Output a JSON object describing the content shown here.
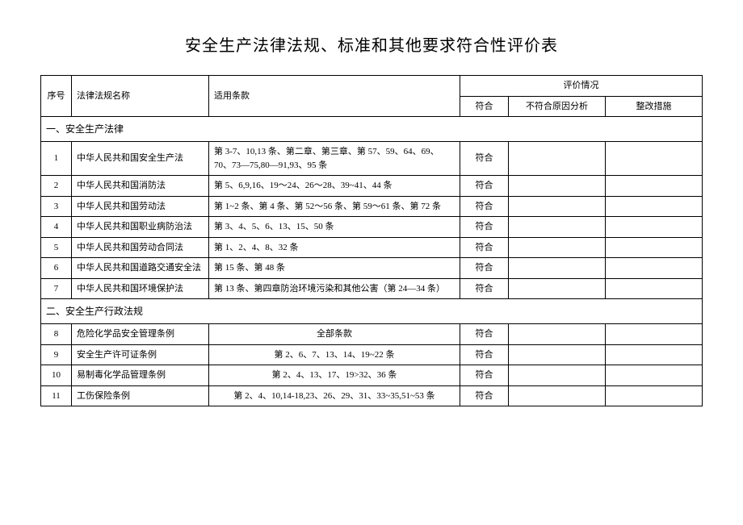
{
  "title": "安全生产法律法规、标准和其他要求符合性评价表",
  "headers": {
    "seq": "序号",
    "name": "法律法规名称",
    "clause": "适用条款",
    "eval_group": "评价情况",
    "fit": "符合",
    "reason": "不符合原因分析",
    "fix": "整改措施"
  },
  "section1": "一、安全生产法律",
  "section2": "二、安全生产行政法规",
  "rows1": {
    "r1": {
      "seq": "1",
      "name": "中华人民共和国安全生产法",
      "clause": "第 3-7、10,13 条、第二章、第三章、第 57、59、64、69、70、73—75,80—91,93、95 条",
      "fit": "符合"
    },
    "r2": {
      "seq": "2",
      "name": "中华人民共和国消防法",
      "clause": "第 5、6,9,16、19～24、26～28、39~41、44 条",
      "fit": "符合"
    },
    "r3": {
      "seq": "3",
      "name": "中华人民共和国劳动法",
      "clause": "第 1~2 条、第 4 条、第 52～56 条、第 59～61 条、第 72 条",
      "fit": "符合"
    },
    "r4": {
      "seq": "4",
      "name": "中华人民共和国职业病防治法",
      "clause": "第 3、4、5、6、13、15、50 条",
      "fit": "符合"
    },
    "r5": {
      "seq": "5",
      "name": "中华人民共和国劳动合同法",
      "clause": "第 1、2、4、8、32 条",
      "fit": "符合"
    },
    "r6": {
      "seq": "6",
      "name": "中华人民共和国道路交通安全法",
      "clause": "第 15 条、第 48 条",
      "fit": "符合"
    },
    "r7": {
      "seq": "7",
      "name": "中华人民共和国环境保护法",
      "clause": "第 13 条、第四章防治环境污染和其他公害（第 24—34 条）",
      "fit": "符合"
    }
  },
  "rows2": {
    "r8": {
      "seq": "8",
      "name": "危险化学品安全管理条例",
      "clause": "全部条款",
      "fit": "符合"
    },
    "r9": {
      "seq": "9",
      "name": "安全生产许可证条例",
      "clause": "第 2、6、7、13、14、19~22 条",
      "fit": "符合"
    },
    "r10": {
      "seq": "10",
      "name": "易制毒化学品管理条例",
      "clause": "第 2、4、13、17、19>32、36 条",
      "fit": "符合"
    },
    "r11": {
      "seq": "11",
      "name": "工伤保险条例",
      "clause": "第 2、4、10,14-18,23、26、29、31、33~35,51~53 条",
      "fit": "符合"
    }
  }
}
